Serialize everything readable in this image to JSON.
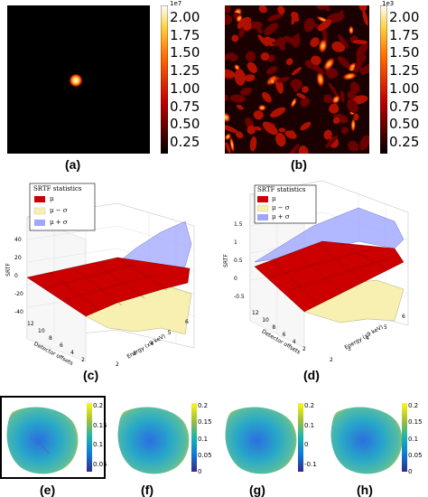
{
  "panels": {
    "a": {
      "caption": "(a)",
      "colorbar_exponent": "1e7",
      "colorbar_ticks": [
        "2.00",
        "1.75",
        "1.50",
        "1.25",
        "1.00",
        "0.75",
        "0.50",
        "0.25"
      ]
    },
    "b": {
      "caption": "(b)",
      "colorbar_exponent": "1e3",
      "colorbar_ticks": [
        "2.00",
        "1.75",
        "1.50",
        "1.25",
        "1.00",
        "0.75",
        "0.50",
        "0.25"
      ]
    },
    "c": {
      "caption": "(c)",
      "legend_title": "SRTF statistics",
      "legend": [
        "μ",
        "μ − σ",
        "μ + σ"
      ],
      "zlabel": "SRTF",
      "xlabel": "Detector offsets",
      "ylabel": "Energy (x9 keV)",
      "z_ticks": [
        "40",
        "20",
        "0",
        "-20",
        "-40"
      ],
      "x_ticks": [
        "12",
        "10",
        "8",
        "6",
        "4",
        "2"
      ],
      "y_ticks": [
        "2",
        "3",
        "4",
        "5",
        "6"
      ]
    },
    "d": {
      "caption": "(d)",
      "legend_title": "SRTF statistics",
      "legend": [
        "μ",
        "μ − σ",
        "μ + σ"
      ],
      "zlabel": "SRTF",
      "xlabel": "Detector offsets",
      "ylabel": "Energy (x9 keV)",
      "z_ticks": [
        "1.5",
        "1",
        "0.5",
        "0",
        "-0.5"
      ],
      "x_ticks": [
        "12",
        "10",
        "8",
        "6",
        "4",
        "2"
      ],
      "y_ticks": [
        "2",
        "3",
        "4",
        "5",
        "6"
      ]
    },
    "e": {
      "caption": "(e)",
      "ticks": [
        "0.2",
        "0.15",
        "0.1",
        "0.05"
      ]
    },
    "f": {
      "caption": "(f)",
      "ticks": [
        "0.2",
        "0.15",
        "0.1",
        "0.05",
        "0"
      ]
    },
    "g": {
      "caption": "(g)",
      "ticks": [
        "0.2",
        "0.1",
        "0",
        "-0.1"
      ]
    },
    "h": {
      "caption": "(h)",
      "ticks": [
        "0.2",
        "0.15",
        "0.1",
        "0.05",
        "0"
      ]
    }
  },
  "colors": {
    "hot_low": "#000000",
    "hot_mid": "#e02000",
    "hot_high": "#ffffff",
    "mu": "#cc0000",
    "mu_minus_sigma": "#f7f0b0",
    "mu_plus_sigma": "#9fa6ff",
    "panel_e_frame": "#000000"
  },
  "icons": [
    "bright-spot-image",
    "speckle-image",
    "srtf-surface-plot",
    "brain-surface-render"
  ]
}
